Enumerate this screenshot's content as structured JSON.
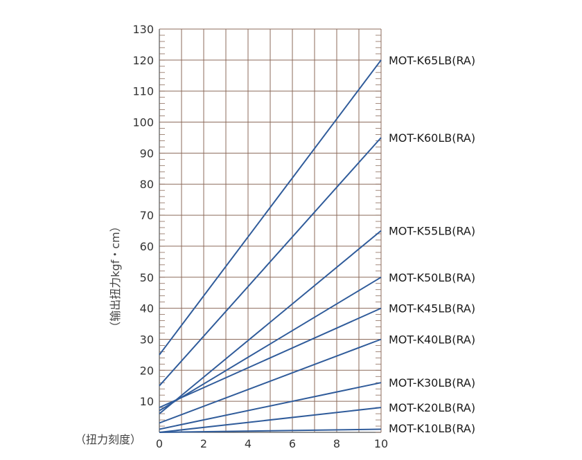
{
  "chart_data": {
    "type": "line",
    "xlabel": "（扭力刻度）",
    "ylabel": "（输出扭力kgf・cm）",
    "xlim": [
      0,
      10
    ],
    "ylim": [
      0,
      130
    ],
    "x_ticks": [
      "0",
      "2",
      "4",
      "6",
      "8",
      "10"
    ],
    "y_ticks": [
      "10",
      "20",
      "30",
      "40",
      "50",
      "60",
      "70",
      "80",
      "90",
      "100",
      "110",
      "120",
      "130"
    ],
    "grid": true,
    "colors": {
      "line": "#2f5b9a",
      "grid": "#8b6a5a",
      "axis": "#555555"
    },
    "series": [
      {
        "name": "MOT-K65LB(RA)",
        "x": [
          0,
          10
        ],
        "y": [
          25,
          120
        ]
      },
      {
        "name": "MOT-K60LB(RA)",
        "x": [
          0,
          10
        ],
        "y": [
          15,
          95
        ]
      },
      {
        "name": "MOT-K55LB(RA)",
        "x": [
          0,
          10
        ],
        "y": [
          6,
          65
        ]
      },
      {
        "name": "MOT-K50LB(RA)",
        "x": [
          0,
          10
        ],
        "y": [
          7,
          50
        ]
      },
      {
        "name": "MOT-K45LB(RA)",
        "x": [
          0,
          10
        ],
        "y": [
          8,
          40
        ]
      },
      {
        "name": "MOT-K40LB(RA)",
        "x": [
          0,
          10
        ],
        "y": [
          3,
          30
        ]
      },
      {
        "name": "MOT-K30LB(RA)",
        "x": [
          0,
          10
        ],
        "y": [
          1,
          16
        ]
      },
      {
        "name": "MOT-K20LB(RA)",
        "x": [
          0,
          10
        ],
        "y": [
          0,
          8
        ]
      },
      {
        "name": "MOT-K10LB(RA)",
        "x": [
          0,
          10
        ],
        "y": [
          0,
          1
        ]
      }
    ]
  }
}
